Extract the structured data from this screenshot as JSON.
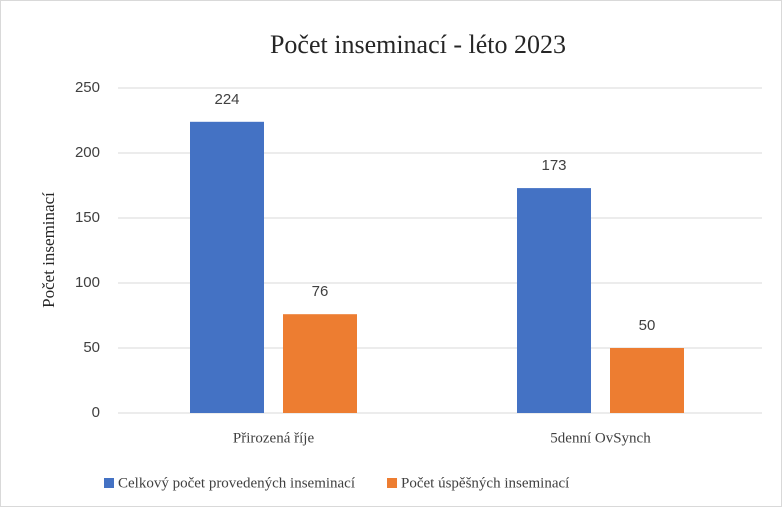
{
  "chart_data": {
    "type": "bar",
    "title": "Počet inseminací  - léto 2023",
    "y_label": "Počet inseminací",
    "categories": [
      "Přirozená říje",
      "5denní OvSynch"
    ],
    "series": [
      {
        "name": "Celkový počet provedených inseminací",
        "color": "#4472c4",
        "values": [
          224,
          173
        ]
      },
      {
        "name": "Počet úspěšných inseminací",
        "color": "#ed7d31",
        "values": [
          76,
          50
        ]
      }
    ],
    "ylim": [
      0,
      250
    ],
    "yticks": [
      0,
      50,
      100,
      150,
      200,
      250
    ],
    "grid": true,
    "legend": "bottom"
  }
}
